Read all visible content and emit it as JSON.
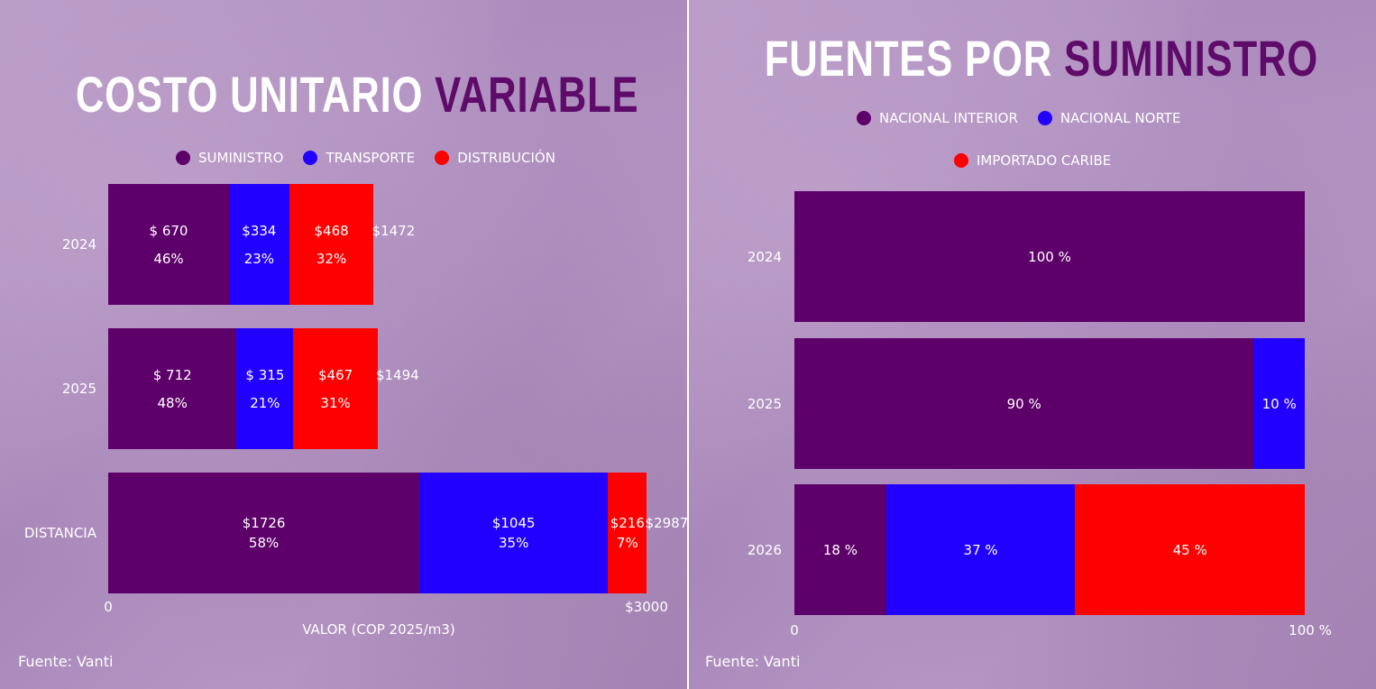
{
  "chart_data": [
    {
      "type": "bar",
      "orientation": "horizontal",
      "stacked": true,
      "title_parts": [
        "COSTO UNITARIO ",
        "VARIABLE"
      ],
      "categories": [
        "2024",
        "2025",
        "DISTANCIA"
      ],
      "series": [
        {
          "name": "SUMINISTRO",
          "color": "#5e006a",
          "values": [
            670,
            712,
            1726
          ],
          "value_labels": [
            "$ 670",
            "$ 712",
            "$1726"
          ],
          "pct_labels": [
            "46%",
            "48%",
            "58%"
          ]
        },
        {
          "name": "TRANSPORTE",
          "color": "#2200ff",
          "values": [
            334,
            315,
            1045
          ],
          "value_labels": [
            "$334",
            "$ 315",
            "$1045"
          ],
          "pct_labels": [
            "23%",
            "21%",
            "35%"
          ]
        },
        {
          "name": "DISTRIBUCIÓN",
          "color": "#ff0000",
          "values": [
            468,
            467,
            216
          ],
          "value_labels": [
            "$468",
            "$467",
            "$216"
          ],
          "pct_labels": [
            "32%",
            "31%",
            "7%"
          ]
        }
      ],
      "totals": [
        "$1472",
        "$1494",
        "$2987"
      ],
      "xlim": [
        0,
        3000
      ],
      "xticks": [
        "0",
        "$3000"
      ],
      "xlabel": "VALOR (COP 2025/m3)",
      "legend": "top",
      "source": "Fuente: Vanti"
    },
    {
      "type": "bar",
      "orientation": "horizontal",
      "stacked": true,
      "title_parts": [
        "FUENTES POR ",
        "SUMINISTRO"
      ],
      "categories": [
        "2024",
        "2025",
        "2026"
      ],
      "series": [
        {
          "name": "NACIONAL INTERIOR",
          "color": "#5e006a",
          "values": [
            100,
            90,
            18
          ],
          "pct_labels": [
            "100 %",
            "90 %",
            "18 %"
          ]
        },
        {
          "name": "NACIONAL NORTE",
          "color": "#2200ff",
          "values": [
            0,
            10,
            37
          ],
          "pct_labels": [
            "",
            "10 %",
            "37 %"
          ]
        },
        {
          "name": "IMPORTADO CARIBE",
          "color": "#ff0000",
          "values": [
            0,
            0,
            45
          ],
          "pct_labels": [
            "",
            "",
            "45 %"
          ]
        }
      ],
      "xlim": [
        0,
        100
      ],
      "xticks": [
        "0",
        "100 %"
      ],
      "legend": "top",
      "source": "Fuente: Vanti"
    }
  ]
}
